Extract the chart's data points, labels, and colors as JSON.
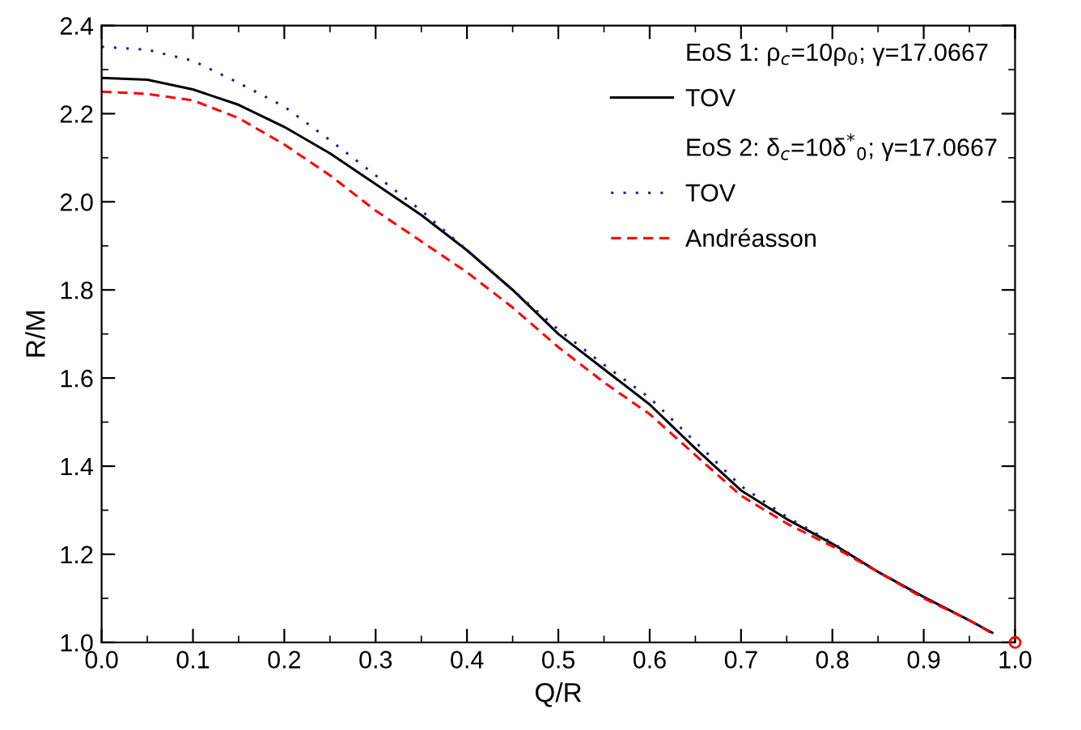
{
  "chart_data": {
    "type": "line",
    "xlabel": "Q/R",
    "ylabel": "R/M",
    "xlim": [
      0.0,
      1.0
    ],
    "ylim": [
      1.0,
      2.4
    ],
    "xticks": [
      {
        "value": 0,
        "label": "0.0"
      },
      0.1,
      0.2,
      0.3,
      0.4,
      0.5,
      0.6,
      0.7,
      0.8,
      0.9,
      {
        "value": 1,
        "label": "1.0"
      }
    ],
    "yticks": [
      {
        "value": 1,
        "label": "1.0"
      },
      1.2,
      1.4,
      1.6,
      1.8,
      {
        "value": 2,
        "label": "2.0"
      },
      2.2,
      2.4
    ],
    "grid": false,
    "legend": "top right",
    "annotations": [
      "EoS 1: ρ$_{c}$=10ρ$_{0}$; γ=17.0667",
      "EoS 2: δ$_{c}$=10δ$^{*}$$_{0}$; γ=17.0667"
    ],
    "x": [
      0,
      0.05,
      0.1,
      0.15,
      0.2,
      0.25,
      0.3,
      0.35,
      0.4,
      0.45,
      0.5,
      0.55,
      0.6,
      0.65,
      0.7,
      0.75,
      0.8,
      0.85,
      0.9,
      0.95,
      0.975
    ],
    "series": [
      {
        "name": "TOV",
        "color": "#000000",
        "line_style": "solid",
        "values": [
          2.281,
          2.277,
          2.255,
          2.22,
          2.17,
          2.11,
          2.04,
          1.97,
          1.89,
          1.8,
          1.7,
          1.62,
          1.54,
          1.44,
          1.345,
          1.28,
          1.224,
          1.16,
          1.103,
          1.05,
          1.022
        ]
      },
      {
        "name": "TOV",
        "color": "#1a1aa0",
        "line_style": "dotted",
        "values": [
          2.352,
          2.345,
          2.32,
          2.27,
          2.216,
          2.14,
          2.06,
          1.98,
          1.89,
          1.8,
          1.71,
          1.63,
          1.555,
          1.455,
          1.355,
          1.285,
          1.226,
          1.16,
          1.103,
          1.05,
          1.022
        ]
      },
      {
        "name": "Andréasson",
        "color": "#ff0000",
        "line_style": "dashed",
        "values": [
          2.25,
          2.245,
          2.23,
          2.19,
          2.13,
          2.06,
          1.98,
          1.91,
          1.84,
          1.76,
          1.67,
          1.59,
          1.518,
          1.425,
          1.333,
          1.27,
          1.218,
          1.16,
          1.1,
          1.05,
          1.02
        ]
      },
      {
        "type": "scatter",
        "color": "#ff0000",
        "marker": "circle",
        "x": [
          1.0
        ],
        "values": [
          1.0
        ]
      }
    ]
  }
}
